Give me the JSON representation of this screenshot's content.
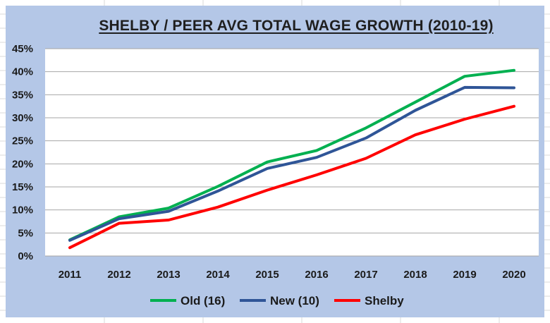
{
  "chart_data": {
    "type": "line",
    "title": "SHELBY / PEER AVG TOTAL WAGE GROWTH (2010-19)",
    "xlabel": "",
    "ylabel": "",
    "categories": [
      "2011",
      "2012",
      "2013",
      "2014",
      "2015",
      "2016",
      "2017",
      "2018",
      "2019",
      "2020"
    ],
    "ylim": [
      0,
      45
    ],
    "yticks": [
      "0%",
      "5%",
      "10%",
      "15%",
      "20%",
      "25%",
      "30%",
      "35%",
      "40%",
      "45%"
    ],
    "grid": true,
    "legend": "bottom",
    "series": [
      {
        "name": "Old (16)",
        "color": "#00b050",
        "values": [
          3.5,
          8.5,
          10.4,
          15.1,
          20.4,
          22.9,
          27.8,
          33.4,
          39.0,
          40.3
        ]
      },
      {
        "name": "New (10)",
        "color": "#2f5597",
        "values": [
          3.4,
          8.1,
          9.7,
          14.1,
          19.0,
          21.4,
          25.6,
          31.6,
          36.6,
          36.5
        ]
      },
      {
        "name": "Shelby",
        "color": "#ff0000",
        "values": [
          1.8,
          7.1,
          7.8,
          10.6,
          14.3,
          17.6,
          21.2,
          26.3,
          29.7,
          32.5
        ]
      }
    ]
  }
}
